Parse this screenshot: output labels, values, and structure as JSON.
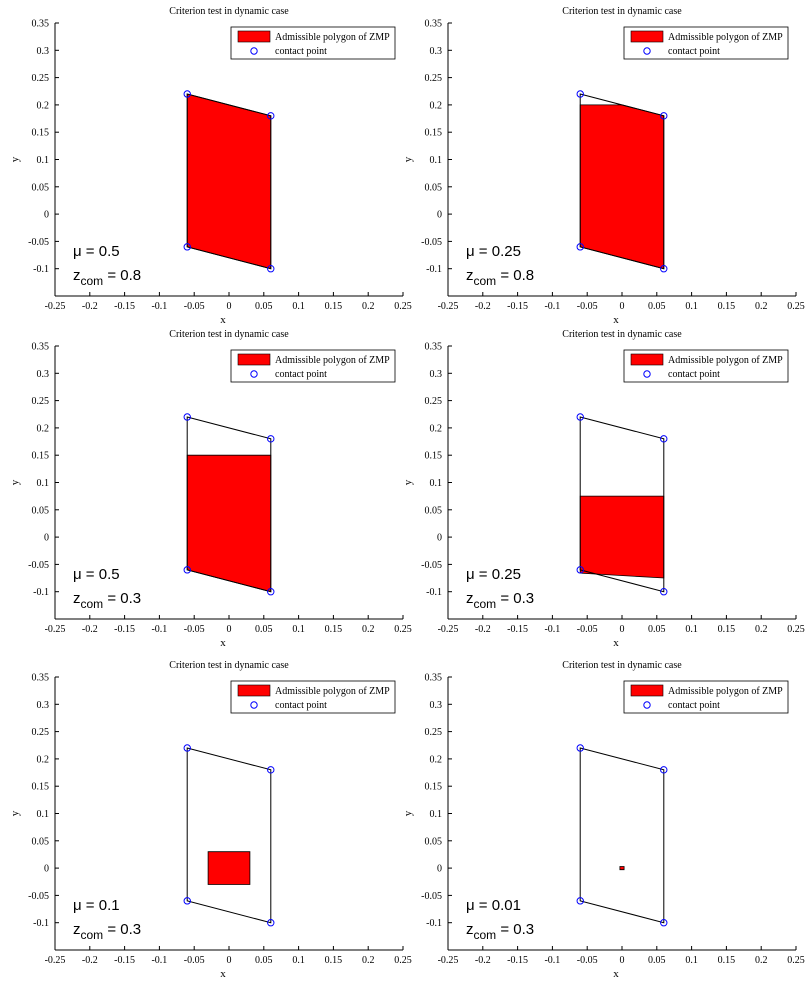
{
  "chart_data": [
    {
      "type": "area",
      "title": "Criterion test in dynamic case",
      "xlabel": "x",
      "ylabel": "y",
      "xlim": [
        -0.25,
        0.25
      ],
      "ylim": [
        -0.15,
        0.35
      ],
      "xticks": [
        -0.25,
        -0.2,
        -0.15,
        -0.1,
        -0.05,
        0,
        0.05,
        0.1,
        0.15,
        0.2,
        0.25
      ],
      "yticks": [
        -0.1,
        -0.05,
        0,
        0.05,
        0.1,
        0.15,
        0.2,
        0.25,
        0.3,
        0.35
      ],
      "xtick_labels": [
        "-0.25",
        "-0.2",
        "-0.15",
        "-0.1",
        "-0.05",
        "0",
        "0.05",
        "0.1",
        "0.15",
        "0.2",
        "0.25"
      ],
      "ytick_labels": [
        "-0.1",
        "-0.05",
        "0",
        "0.05",
        "0.1",
        "0.15",
        "0.2",
        "0.25",
        "0.3",
        "0.35"
      ],
      "legend": [
        "Admissible polygon of ZMP",
        "contact point"
      ],
      "legend_position": "top-right",
      "contact_points": [
        [
          -0.06,
          0.22
        ],
        [
          0.06,
          0.18
        ],
        [
          0.06,
          -0.1
        ],
        [
          -0.06,
          -0.06
        ]
      ],
      "zmp_polygon": [
        [
          -0.06,
          0.22
        ],
        [
          0.06,
          0.18
        ],
        [
          0.06,
          -0.1
        ],
        [
          -0.06,
          -0.06
        ]
      ],
      "annotation": {
        "mu": "μ = 0.5",
        "z_pre": "z",
        "z_sub": "com",
        "z_post": " = 0.8"
      }
    },
    {
      "type": "area",
      "title": "Criterion test in dynamic case",
      "xlabel": "x",
      "ylabel": "y",
      "xlim": [
        -0.25,
        0.25
      ],
      "ylim": [
        -0.15,
        0.35
      ],
      "xticks": [
        -0.25,
        -0.2,
        -0.15,
        -0.1,
        -0.05,
        0,
        0.05,
        0.1,
        0.15,
        0.2,
        0.25
      ],
      "yticks": [
        -0.1,
        -0.05,
        0,
        0.05,
        0.1,
        0.15,
        0.2,
        0.25,
        0.3,
        0.35
      ],
      "xtick_labels": [
        "-0.25",
        "-0.2",
        "-0.15",
        "-0.1",
        "-0.05",
        "0",
        "0.05",
        "0.1",
        "0.15",
        "0.2",
        "0.25"
      ],
      "ytick_labels": [
        "-0.1",
        "-0.05",
        "0",
        "0.05",
        "0.1",
        "0.15",
        "0.2",
        "0.25",
        "0.3",
        "0.35"
      ],
      "legend": [
        "Admissible polygon of ZMP",
        "contact point"
      ],
      "legend_position": "top-right",
      "contact_points": [
        [
          -0.06,
          0.22
        ],
        [
          0.06,
          0.18
        ],
        [
          0.06,
          -0.1
        ],
        [
          -0.06,
          -0.06
        ]
      ],
      "zmp_polygon": [
        [
          -0.06,
          0.2
        ],
        [
          0.0,
          0.2
        ],
        [
          0.06,
          0.18
        ],
        [
          0.06,
          -0.1
        ],
        [
          -0.06,
          -0.06
        ]
      ],
      "annotation": {
        "mu": "μ = 0.25",
        "z_pre": "z",
        "z_sub": "com",
        "z_post": " = 0.8"
      }
    },
    {
      "type": "area",
      "title": "Criterion test in dynamic case",
      "xlabel": "x",
      "ylabel": "y",
      "xlim": [
        -0.25,
        0.25
      ],
      "ylim": [
        -0.15,
        0.35
      ],
      "xticks": [
        -0.25,
        -0.2,
        -0.15,
        -0.1,
        -0.05,
        0,
        0.05,
        0.1,
        0.15,
        0.2,
        0.25
      ],
      "yticks": [
        -0.1,
        -0.05,
        0,
        0.05,
        0.1,
        0.15,
        0.2,
        0.25,
        0.3,
        0.35
      ],
      "xtick_labels": [
        "-0.25",
        "-0.2",
        "-0.15",
        "-0.1",
        "-0.05",
        "0",
        "0.05",
        "0.1",
        "0.15",
        "0.2",
        "0.25"
      ],
      "ytick_labels": [
        "-0.1",
        "-0.05",
        "0",
        "0.05",
        "0.1",
        "0.15",
        "0.2",
        "0.25",
        "0.3",
        "0.35"
      ],
      "legend": [
        "Admissible polygon of ZMP",
        "contact point"
      ],
      "legend_position": "top-right",
      "contact_points": [
        [
          -0.06,
          0.22
        ],
        [
          0.06,
          0.18
        ],
        [
          0.06,
          -0.1
        ],
        [
          -0.06,
          -0.06
        ]
      ],
      "zmp_polygon": [
        [
          -0.06,
          0.15
        ],
        [
          0.06,
          0.15
        ],
        [
          0.06,
          -0.1
        ],
        [
          -0.06,
          -0.06
        ]
      ],
      "annotation": {
        "mu": "μ = 0.5",
        "z_pre": "z",
        "z_sub": "com",
        "z_post": " = 0.3"
      }
    },
    {
      "type": "area",
      "title": "Criterion test in dynamic case",
      "xlabel": "x",
      "ylabel": "y",
      "xlim": [
        -0.25,
        0.25
      ],
      "ylim": [
        -0.15,
        0.35
      ],
      "xticks": [
        -0.25,
        -0.2,
        -0.15,
        -0.1,
        -0.05,
        0,
        0.05,
        0.1,
        0.15,
        0.2,
        0.25
      ],
      "yticks": [
        -0.1,
        -0.05,
        0,
        0.05,
        0.1,
        0.15,
        0.2,
        0.25,
        0.3,
        0.35
      ],
      "xtick_labels": [
        "-0.25",
        "-0.2",
        "-0.15",
        "-0.1",
        "-0.05",
        "0",
        "0.05",
        "0.1",
        "0.15",
        "0.2",
        "0.25"
      ],
      "ytick_labels": [
        "-0.1",
        "-0.05",
        "0",
        "0.05",
        "0.1",
        "0.15",
        "0.2",
        "0.25",
        "0.3",
        "0.35"
      ],
      "legend": [
        "Admissible polygon of ZMP",
        "contact point"
      ],
      "legend_position": "top-right",
      "contact_points": [
        [
          -0.06,
          0.22
        ],
        [
          0.06,
          0.18
        ],
        [
          0.06,
          -0.1
        ],
        [
          -0.06,
          -0.06
        ]
      ],
      "zmp_polygon": [
        [
          -0.06,
          0.075
        ],
        [
          0.06,
          0.075
        ],
        [
          0.06,
          -0.075
        ],
        [
          -0.06,
          -0.066
        ]
      ],
      "annotation": {
        "mu": "μ = 0.25",
        "z_pre": "z",
        "z_sub": "com",
        "z_post": " = 0.3"
      }
    },
    {
      "type": "area",
      "title": "Criterion test in dynamic case",
      "xlabel": "x",
      "ylabel": "y",
      "xlim": [
        -0.25,
        0.25
      ],
      "ylim": [
        -0.15,
        0.35
      ],
      "xticks": [
        -0.25,
        -0.2,
        -0.15,
        -0.1,
        -0.05,
        0,
        0.05,
        0.1,
        0.15,
        0.2,
        0.25
      ],
      "yticks": [
        -0.1,
        -0.05,
        0,
        0.05,
        0.1,
        0.15,
        0.2,
        0.25,
        0.3,
        0.35
      ],
      "xtick_labels": [
        "-0.25",
        "-0.2",
        "-0.15",
        "-0.1",
        "-0.05",
        "0",
        "0.05",
        "0.1",
        "0.15",
        "0.2",
        "0.25"
      ],
      "ytick_labels": [
        "-0.1",
        "-0.05",
        "0",
        "0.05",
        "0.1",
        "0.15",
        "0.2",
        "0.25",
        "0.3",
        "0.35"
      ],
      "legend": [
        "Admissible polygon of ZMP",
        "contact point"
      ],
      "legend_position": "top-right",
      "contact_points": [
        [
          -0.06,
          0.22
        ],
        [
          0.06,
          0.18
        ],
        [
          0.06,
          -0.1
        ],
        [
          -0.06,
          -0.06
        ]
      ],
      "zmp_polygon": [
        [
          -0.03,
          0.03
        ],
        [
          0.03,
          0.03
        ],
        [
          0.03,
          -0.03
        ],
        [
          -0.03,
          -0.03
        ]
      ],
      "annotation": {
        "mu": "μ = 0.1",
        "z_pre": "z",
        "z_sub": "com",
        "z_post": " = 0.3"
      }
    },
    {
      "type": "area",
      "title": "Criterion test in dynamic case",
      "xlabel": "x",
      "ylabel": "y",
      "xlim": [
        -0.25,
        0.25
      ],
      "ylim": [
        -0.15,
        0.35
      ],
      "xticks": [
        -0.25,
        -0.2,
        -0.15,
        -0.1,
        -0.05,
        0,
        0.05,
        0.1,
        0.15,
        0.2,
        0.25
      ],
      "yticks": [
        -0.1,
        -0.05,
        0,
        0.05,
        0.1,
        0.15,
        0.2,
        0.25,
        0.3,
        0.35
      ],
      "xtick_labels": [
        "-0.25",
        "-0.2",
        "-0.15",
        "-0.1",
        "-0.05",
        "0",
        "0.05",
        "0.1",
        "0.15",
        "0.2",
        "0.25"
      ],
      "ytick_labels": [
        "-0.1",
        "-0.05",
        "0",
        "0.05",
        "0.1",
        "0.15",
        "0.2",
        "0.25",
        "0.3",
        "0.35"
      ],
      "legend": [
        "Admissible polygon of ZMP",
        "contact point"
      ],
      "legend_position": "top-right",
      "contact_points": [
        [
          -0.06,
          0.22
        ],
        [
          0.06,
          0.18
        ],
        [
          0.06,
          -0.1
        ],
        [
          -0.06,
          -0.06
        ]
      ],
      "zmp_polygon": [
        [
          -0.003,
          0.003
        ],
        [
          0.003,
          0.003
        ],
        [
          0.003,
          -0.003
        ],
        [
          -0.003,
          -0.003
        ]
      ],
      "annotation": {
        "mu": "μ = 0.01",
        "z_pre": "z",
        "z_sub": "com",
        "z_post": " = 0.3"
      }
    }
  ],
  "colors": {
    "zmp_fill": "#ff0000",
    "contact_point": "#0000ff",
    "foot_outline": "#000000",
    "axes": "#000000"
  }
}
